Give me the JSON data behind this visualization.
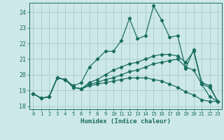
{
  "xlabel": "Humidex (Indice chaleur)",
  "background_color": "#cde8e8",
  "grid_color": "#aecece",
  "line_color": "#1a6e62",
  "xlim": [
    -0.5,
    23.5
  ],
  "ylim": [
    17.8,
    24.6
  ],
  "yticks": [
    18,
    19,
    20,
    21,
    22,
    23,
    24
  ],
  "xticks": [
    0,
    1,
    2,
    3,
    4,
    5,
    6,
    7,
    8,
    9,
    10,
    11,
    12,
    13,
    14,
    15,
    16,
    17,
    18,
    19,
    20,
    21,
    22,
    23
  ],
  "series": [
    [
      18.8,
      18.5,
      18.6,
      19.8,
      19.7,
      19.3,
      19.5,
      20.5,
      21.0,
      21.5,
      21.5,
      22.2,
      23.6,
      22.3,
      22.5,
      24.4,
      23.5,
      22.4,
      22.5,
      20.4,
      21.6,
      19.5,
      19.3,
      18.3
    ],
    [
      18.8,
      18.5,
      18.6,
      19.8,
      19.7,
      19.2,
      19.1,
      19.5,
      19.7,
      20.0,
      20.3,
      20.5,
      20.7,
      20.8,
      21.0,
      21.2,
      21.3,
      21.3,
      21.2,
      20.8,
      21.5,
      19.4,
      19.2,
      18.3
    ],
    [
      18.8,
      18.5,
      18.6,
      19.8,
      19.7,
      19.2,
      19.1,
      19.4,
      19.5,
      19.7,
      19.8,
      20.0,
      20.2,
      20.3,
      20.5,
      20.7,
      20.8,
      20.9,
      21.0,
      20.5,
      20.3,
      19.4,
      18.6,
      18.3
    ],
    [
      18.8,
      18.5,
      18.6,
      19.8,
      19.7,
      19.2,
      19.1,
      19.3,
      19.4,
      19.5,
      19.6,
      19.7,
      19.8,
      19.8,
      19.8,
      19.7,
      19.6,
      19.4,
      19.2,
      18.9,
      18.7,
      18.4,
      18.3,
      18.3
    ]
  ]
}
